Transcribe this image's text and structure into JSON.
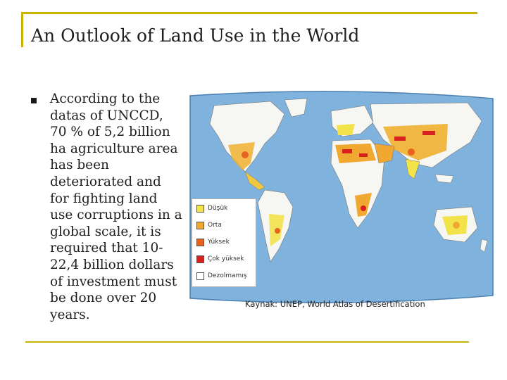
{
  "slide": {
    "title": "An Outlook of Land Use in the World",
    "body_lines": [
      "According to the",
      "datas of UNCCD,",
      "70 % of 5,2 billion",
      "ha agriculture area",
      "has been",
      "deteriorated and",
      "for fighting land",
      "use corruptions in a",
      "global scale, it is",
      "required that 10-",
      "22,4 billion dollars",
      "of investment must",
      "be done over 20",
      "years."
    ]
  },
  "map": {
    "legend": [
      {
        "label": "Düşük",
        "color": "#f2e34a"
      },
      {
        "label": "Orta",
        "color": "#f0a830"
      },
      {
        "label": "Yüksek",
        "color": "#e8641e"
      },
      {
        "label": "Çok yüksek",
        "color": "#d8201e"
      },
      {
        "label": "Dezolmamış",
        "color": "#ffffff"
      }
    ],
    "source": "Kaynak: UNEP, World Atlas of Desertification"
  }
}
